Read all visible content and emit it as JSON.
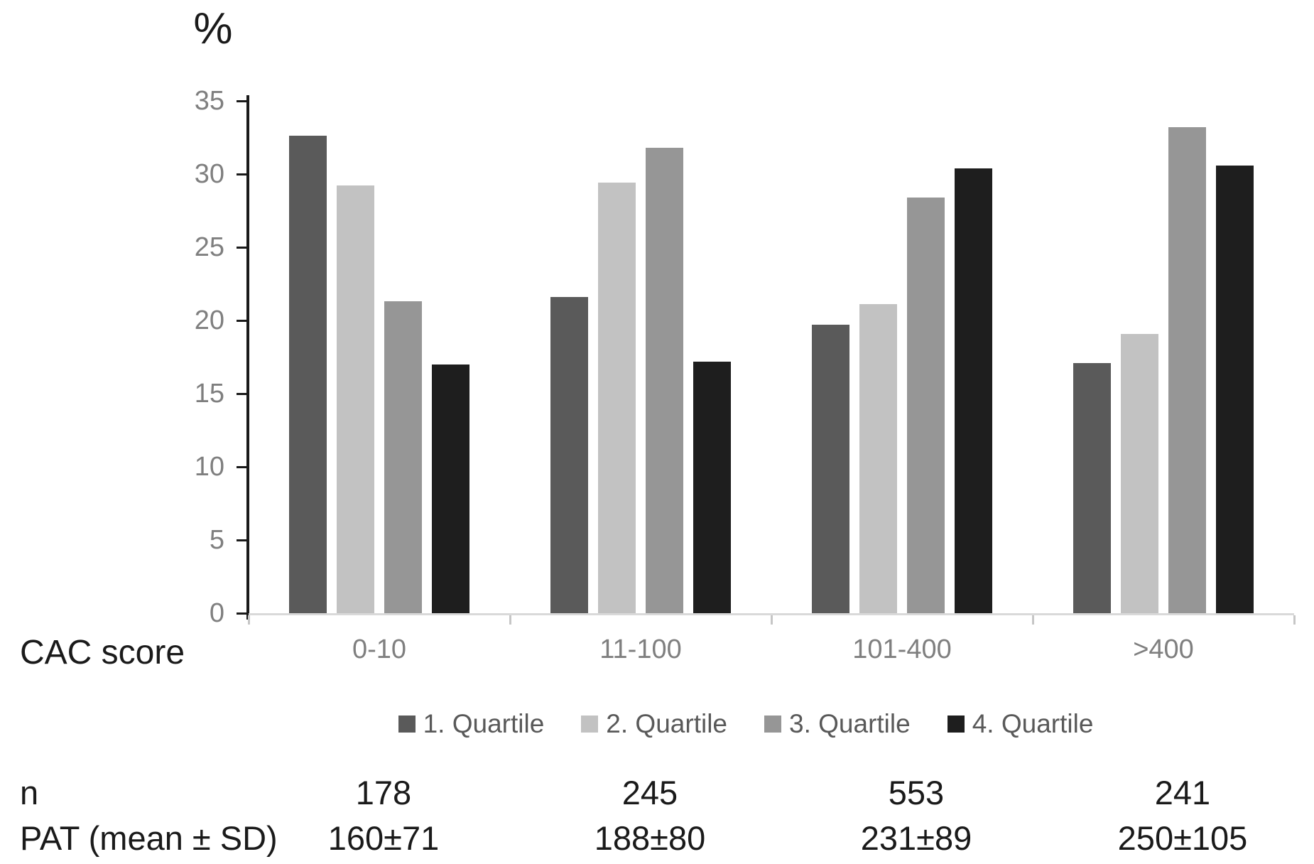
{
  "chart_data": {
    "type": "bar",
    "title": "",
    "y_axis_label": "%",
    "x_axis_label": "CAC score",
    "ylim": [
      0,
      35
    ],
    "yticks": [
      0,
      5,
      10,
      15,
      20,
      25,
      30,
      35
    ],
    "grid": false,
    "legend_position": "bottom",
    "categories": [
      "0-10",
      "11-100",
      "101-400",
      ">400"
    ],
    "series": [
      {
        "name": "1. Quartile",
        "color": "#5a5a5a",
        "values": [
          32.6,
          21.6,
          19.7,
          17.1
        ]
      },
      {
        "name": "2. Quartile",
        "color": "#c2c2c2",
        "values": [
          29.2,
          29.4,
          21.1,
          19.1
        ]
      },
      {
        "name": "3. Quartile",
        "color": "#969696",
        "values": [
          21.3,
          31.8,
          28.4,
          33.2
        ]
      },
      {
        "name": "4. Quartile",
        "color": "#1e1e1e",
        "values": [
          17.0,
          17.2,
          30.4,
          30.6
        ]
      }
    ]
  },
  "table": {
    "rows": [
      {
        "label": "n",
        "values": [
          "178",
          "245",
          "553",
          "241"
        ]
      },
      {
        "label": "PAT (mean ± SD)",
        "values": [
          "160±71",
          "188±80",
          "231±89",
          "250±105"
        ]
      }
    ]
  },
  "colors": {
    "axis_line": "#1a1a1a",
    "baseline": "#d9d9d9",
    "tick_label": "#7f7f7f",
    "category_label": "#7f7f7f",
    "legend_text": "#595959",
    "text": "#1a1a1a"
  }
}
